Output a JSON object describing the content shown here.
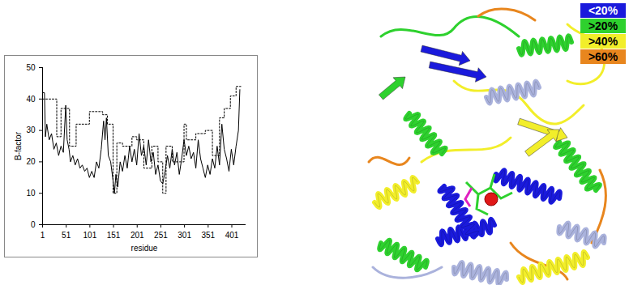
{
  "chart_data": {
    "type": "line",
    "xlabel": "residue",
    "ylabel": "B-factor",
    "xlim": [
      1,
      431
    ],
    "ylim": [
      0,
      50
    ],
    "xticks": [
      1,
      51,
      101,
      151,
      201,
      251,
      301,
      351,
      401
    ],
    "yticks": [
      0,
      10,
      20,
      30,
      40,
      50
    ],
    "grid": false,
    "series": [
      {
        "color": "#000000",
        "line_style": "solid",
        "x": [
          1,
          5,
          7,
          10,
          15,
          20,
          25,
          30,
          35,
          40,
          45,
          50,
          53,
          57,
          60,
          65,
          70,
          75,
          80,
          85,
          90,
          95,
          100,
          105,
          110,
          115,
          120,
          125,
          130,
          133,
          136,
          140,
          145,
          150,
          153,
          156,
          160,
          165,
          170,
          175,
          180,
          185,
          190,
          195,
          200,
          205,
          210,
          215,
          220,
          225,
          230,
          235,
          240,
          245,
          250,
          255,
          260,
          265,
          270,
          275,
          280,
          285,
          290,
          295,
          300,
          305,
          310,
          315,
          320,
          325,
          330,
          335,
          340,
          345,
          350,
          355,
          360,
          365,
          370,
          375,
          380,
          385,
          390,
          395,
          400,
          405,
          410,
          415,
          418
        ],
        "values": [
          42,
          42,
          28,
          32,
          27,
          29,
          24,
          26,
          22,
          25,
          23,
          38,
          27,
          24,
          20,
          22,
          19,
          21,
          18,
          19,
          17,
          18,
          15,
          17,
          15,
          20,
          18,
          24,
          33,
          27,
          34,
          22,
          20,
          14,
          10,
          16,
          12,
          20,
          17,
          22,
          18,
          25,
          20,
          24,
          19,
          29,
          22,
          25,
          19,
          27,
          20,
          23,
          16,
          19,
          14,
          13,
          17,
          22,
          18,
          24,
          19,
          23,
          16,
          21,
          27,
          22,
          25,
          21,
          23,
          18,
          27,
          21,
          18,
          15,
          19,
          16,
          21,
          18,
          25,
          19,
          32,
          24,
          21,
          17,
          24,
          19,
          25,
          30,
          43
        ]
      },
      {
        "color": "#000000",
        "line_style": "dotted",
        "type": "step",
        "x": [
          1,
          31,
          40,
          58,
          72,
          100,
          128,
          138,
          150,
          158,
          170,
          190,
          200,
          215,
          232,
          245,
          255,
          262,
          275,
          300,
          305,
          325,
          345,
          360,
          375,
          385,
          398,
          410,
          420
        ],
        "values": [
          40,
          28,
          37,
          25,
          32,
          36,
          35,
          32,
          10,
          26,
          25,
          28,
          27,
          18,
          25,
          20,
          10,
          25,
          20,
          32,
          27,
          29,
          30,
          22,
          34,
          37,
          41,
          44,
          44
        ]
      }
    ]
  },
  "structure_legend": {
    "labels": [
      "<20%",
      ">20%",
      ">40%",
      ">60%"
    ],
    "colors": [
      "#1a1adc",
      "#2ed12e",
      "#f2ee2a",
      "#e8861e"
    ]
  }
}
